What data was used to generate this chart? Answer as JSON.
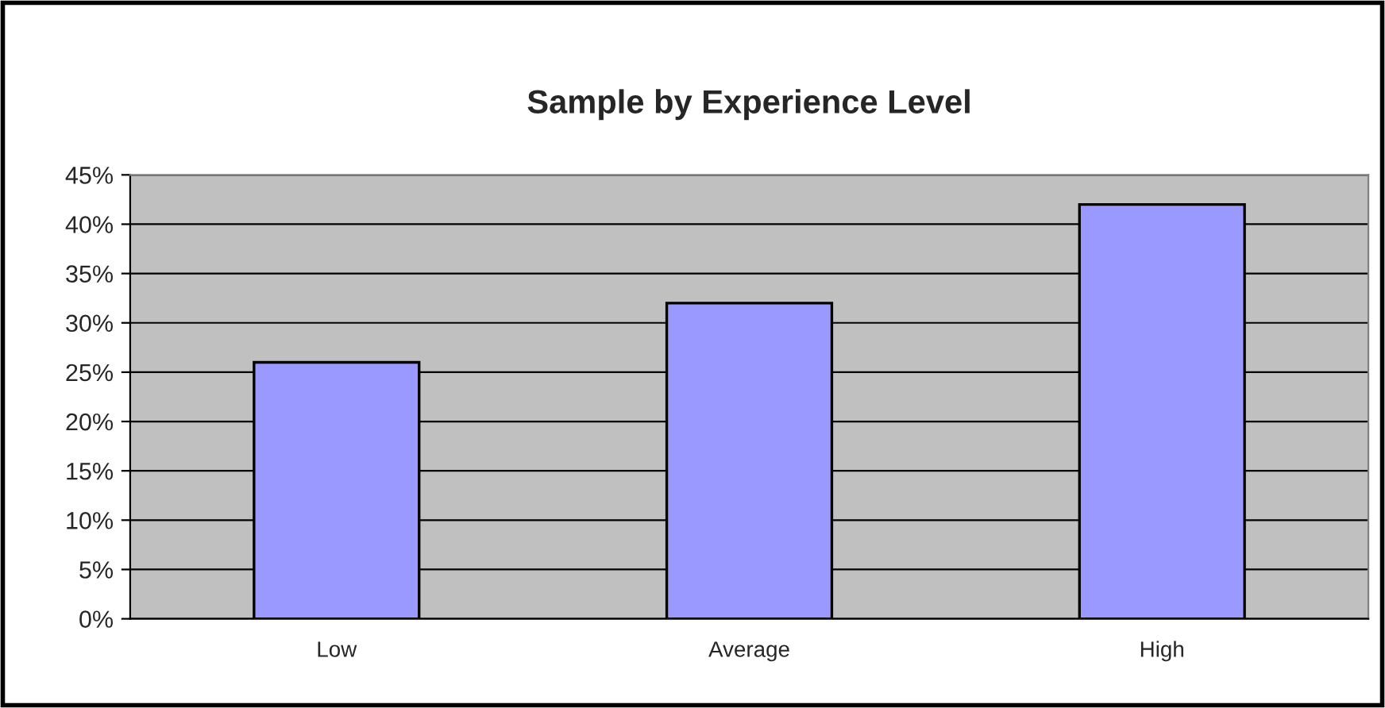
{
  "chart_data": {
    "type": "bar",
    "title": "Sample by Experience Level",
    "categories": [
      "Low",
      "Average",
      "High"
    ],
    "values": [
      26,
      32,
      42
    ],
    "color": "#9999ff",
    "ylim": [
      0,
      45
    ],
    "yticks": [
      {
        "value": 0,
        "label": "0%"
      },
      {
        "value": 5,
        "label": "5%"
      },
      {
        "value": 10,
        "label": "10%"
      },
      {
        "value": 15,
        "label": "15%"
      },
      {
        "value": 20,
        "label": "20%"
      },
      {
        "value": 25,
        "label": "25%"
      },
      {
        "value": 30,
        "label": "30%"
      },
      {
        "value": 35,
        "label": "35%"
      },
      {
        "value": 40,
        "label": "40%"
      },
      {
        "value": 45,
        "label": "45%"
      }
    ],
    "grid": "y"
  }
}
